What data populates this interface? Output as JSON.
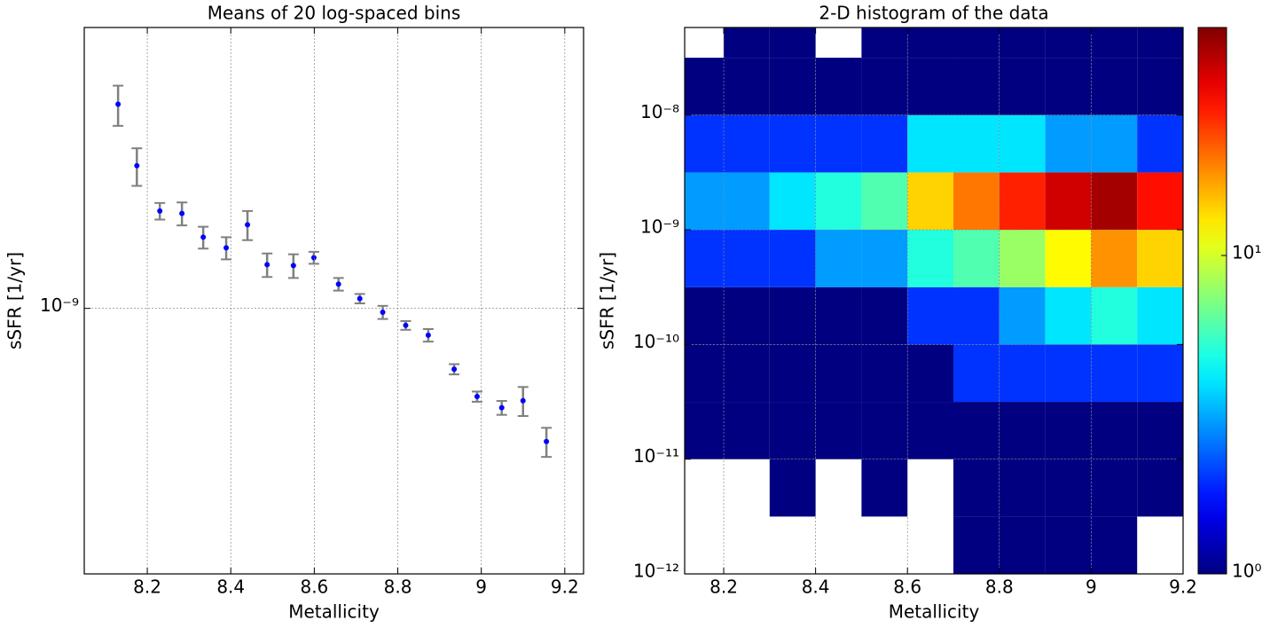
{
  "chart_data": [
    {
      "type": "errorbar",
      "title": "Means of 20 log-spaced bins",
      "xlabel": "Metallicity",
      "ylabel": "sSFR [1/yr]",
      "x": [
        8.13,
        8.175,
        8.23,
        8.283,
        8.334,
        8.389,
        8.44,
        8.487,
        8.55,
        8.599,
        8.658,
        8.709,
        8.764,
        8.819,
        8.873,
        8.935,
        8.99,
        9.049,
        9.1,
        9.156
      ],
      "values": [
        4.98e-09,
        3.07e-09,
        2.15e-09,
        2.11e-09,
        1.75e-09,
        1.61e-09,
        1.93e-09,
        1.41e-09,
        1.4e-09,
        1.49e-09,
        1.21e-09,
        1.08e-09,
        9.7e-10,
        8.75e-10,
        8.1e-10,
        6.2e-10,
        5e-10,
        4.58e-10,
        4.84e-10,
        3.51e-10
      ],
      "errors": [
        7.8e-10,
        4.5e-10,
        1.4e-10,
        1.9e-10,
        1.5e-10,
        1.4e-10,
        2.2e-10,
        1.3e-10,
        1.3e-10,
        7e-11,
        6e-11,
        4e-11,
        5e-11,
        3e-11,
        4e-11,
        2.5e-11,
        2e-11,
        2.5e-11,
        5.5e-11,
        4e-11
      ],
      "color": "#0000ff",
      "error_color": "#808080",
      "xlim": [
        8.049,
        9.245
      ],
      "ylim": [
        1.24e-10,
        9.1e-09
      ],
      "log_y": true,
      "grid": true,
      "xticks": [
        8.2,
        8.4,
        8.6,
        8.8,
        9.0,
        9.2
      ],
      "yticks": [
        {
          "value": 1e-09,
          "label": "10⁻⁹"
        }
      ]
    },
    {
      "type": "hist2d",
      "title": "2-D histogram of the data",
      "xlabel": "Metallicity",
      "ylabel": "sSFR [1/yr]",
      "x_bins": [
        8.1,
        8.2,
        8.3,
        8.4,
        8.5,
        8.6,
        8.7,
        8.8,
        8.9,
        9.0,
        9.1,
        9.2
      ],
      "y_bins": [
        1e-12,
        3.16e-12,
        1e-11,
        3.16e-11,
        1e-10,
        3.16e-10,
        1e-09,
        3.16e-09,
        1e-08,
        3.16e-08,
        1e-07
      ],
      "counts": [
        [
          0,
          0,
          0,
          0,
          0,
          0,
          1,
          1,
          1,
          1,
          0
        ],
        [
          0,
          0,
          1,
          0,
          1,
          0,
          1,
          1,
          1,
          1,
          1
        ],
        [
          1,
          1,
          1,
          1,
          1,
          1,
          1,
          1,
          1,
          1,
          1
        ],
        [
          1,
          1,
          1,
          1,
          1,
          1,
          2,
          2,
          2,
          2,
          2
        ],
        [
          1,
          1,
          1,
          1,
          1,
          2,
          2,
          3,
          4,
          5,
          4
        ],
        [
          2,
          2,
          2,
          3,
          3,
          5,
          6,
          8,
          12,
          18,
          14
        ],
        [
          3,
          3,
          4,
          5,
          6,
          14,
          20,
          28,
          38,
          45,
          30
        ],
        [
          2,
          2,
          2,
          2,
          2,
          4,
          4,
          4,
          3,
          3,
          2
        ],
        [
          1,
          1,
          1,
          1,
          1,
          1,
          1,
          1,
          1,
          1,
          1
        ],
        [
          0,
          1,
          1,
          0,
          1,
          1,
          1,
          1,
          1,
          1,
          1
        ]
      ],
      "xlim": [
        8.115,
        9.2
      ],
      "ylim": [
        1e-12,
        5.8e-08
      ],
      "log_y": true,
      "grid": true,
      "xticks": [
        8.2,
        8.4,
        8.6,
        8.8,
        9.0,
        9.2
      ],
      "yticks": [
        {
          "value": 1e-12,
          "label": "10⁻¹²"
        },
        {
          "value": 1e-11,
          "label": "10⁻¹¹"
        },
        {
          "value": 1e-10,
          "label": "10⁻¹⁰"
        },
        {
          "value": 1e-09,
          "label": "10⁻⁹"
        },
        {
          "value": 1e-08,
          "label": "10⁻⁸"
        }
      ],
      "colormap": "jet",
      "clim": [
        1,
        52
      ],
      "colorbar_ticks": [
        {
          "value": 1,
          "label": "10⁰"
        },
        {
          "value": 10,
          "label": "10¹"
        }
      ]
    }
  ]
}
